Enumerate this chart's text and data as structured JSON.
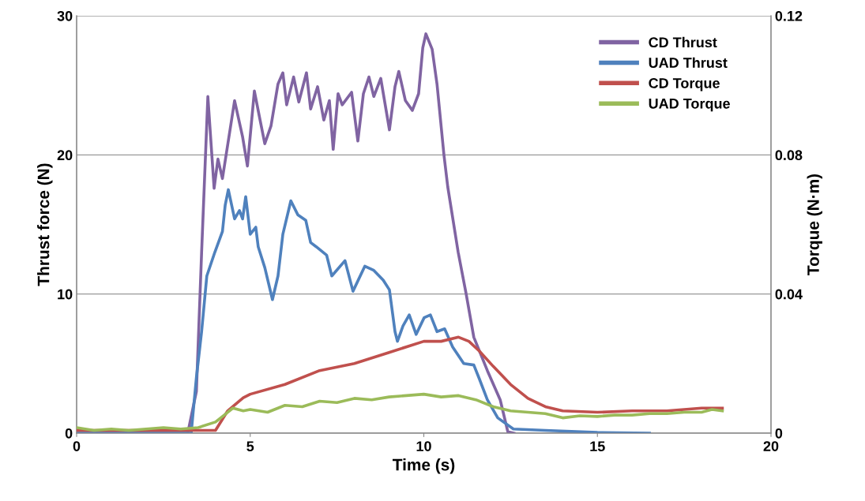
{
  "chart_data": {
    "type": "line",
    "xlabel": "Time (s)",
    "ylabel": "Thrust force (N)",
    "y2label": "Torque (N·m)",
    "xlim": [
      0,
      20
    ],
    "xticks": [
      0,
      5,
      10,
      15,
      20
    ],
    "ylim": [
      0,
      30
    ],
    "yticks": [
      0,
      10,
      20,
      30
    ],
    "y2lim": [
      0,
      0.12
    ],
    "y2ticks": [
      0,
      0.04,
      0.08,
      0.12
    ],
    "grid": "y",
    "legend": "top right",
    "marker": "none",
    "line_style": "solid",
    "series": [
      {
        "name": "CD Thrust",
        "color": "#8064a2",
        "x": [
          0,
          3.2,
          3.45,
          3.6,
          3.78,
          3.96,
          4.07,
          4.2,
          4.55,
          4.78,
          4.92,
          5.12,
          5.26,
          5.42,
          5.6,
          5.8,
          5.94,
          6.05,
          6.25,
          6.4,
          6.62,
          6.74,
          6.94,
          7.12,
          7.28,
          7.39,
          7.53,
          7.65,
          7.92,
          8.1,
          8.26,
          8.42,
          8.56,
          8.76,
          9.01,
          9.17,
          9.28,
          9.47,
          9.67,
          9.85,
          9.97,
          10.06,
          10.24,
          10.38,
          10.58,
          10.69,
          10.99,
          11.22,
          11.44,
          11.83,
          12.2,
          12.42,
          12.6
        ],
        "values": [
          0,
          0,
          3,
          13,
          24.2,
          17.6,
          19.7,
          18.3,
          23.9,
          21.3,
          19.2,
          24.6,
          22.8,
          20.8,
          22.1,
          25.1,
          25.9,
          23.6,
          25.6,
          23.8,
          25.9,
          23.3,
          24.9,
          22.5,
          23.9,
          20.4,
          24.4,
          23.6,
          24.5,
          21,
          24.4,
          25.6,
          24.2,
          25.5,
          21.8,
          24.9,
          26,
          23.9,
          23.2,
          24.4,
          27.7,
          28.7,
          27.6,
          25.1,
          20,
          17.7,
          13,
          10,
          6.9,
          4.5,
          2.4,
          0.1,
          0
        ]
      },
      {
        "name": "UAD Thrust",
        "color": "#4f81bd",
        "x": [
          0,
          3.3,
          3.45,
          3.6,
          3.75,
          3.98,
          4.2,
          4.28,
          4.37,
          4.55,
          4.69,
          4.78,
          4.87,
          5.0,
          5.16,
          5.23,
          5.42,
          5.64,
          5.8,
          5.94,
          6.17,
          6.37,
          6.6,
          6.74,
          6.9,
          7.2,
          7.35,
          7.73,
          7.96,
          8.3,
          8.56,
          8.83,
          9.01,
          9.17,
          9.24,
          9.4,
          9.58,
          9.78,
          10.01,
          10.19,
          10.38,
          10.6,
          10.83,
          11.15,
          11.44,
          11.6,
          11.83,
          12.13,
          12.58,
          13.5,
          15,
          16.5
        ],
        "values": [
          0,
          0,
          4,
          7.3,
          11.3,
          13,
          14.5,
          16.4,
          17.5,
          15.4,
          16,
          15.4,
          17,
          14.3,
          14.8,
          13.4,
          11.9,
          9.6,
          11.3,
          14.3,
          16.7,
          15.7,
          15.3,
          13.7,
          13.4,
          12.8,
          11.3,
          12.4,
          10.2,
          12,
          11.7,
          11,
          10.3,
          7.3,
          6.6,
          7.7,
          8.5,
          7.1,
          8.3,
          8.5,
          7.3,
          7.5,
          6.2,
          5,
          4.9,
          3.9,
          2.4,
          1.1,
          0.3,
          0.2,
          0.05,
          0
        ]
      },
      {
        "name": "CD Torque",
        "color": "#c0504d",
        "axis": "y2",
        "x": [
          0,
          4.0,
          4.35,
          4.8,
          5,
          6,
          7,
          8,
          9,
          10,
          10.5,
          11,
          11.3,
          11.6,
          12,
          12.5,
          13,
          13.5,
          14,
          15,
          16,
          17,
          18,
          18.6
        ],
        "values": [
          0.0008,
          0.0008,
          0.0064,
          0.0102,
          0.0112,
          0.014,
          0.018,
          0.02,
          0.0232,
          0.0264,
          0.0264,
          0.0276,
          0.0264,
          0.0236,
          0.0192,
          0.014,
          0.01,
          0.0076,
          0.0064,
          0.006,
          0.0064,
          0.0064,
          0.0072,
          0.0072
        ]
      },
      {
        "name": "UAD Torque",
        "color": "#9bbb59",
        "axis": "y2",
        "x": [
          0,
          0.5,
          1,
          1.5,
          2,
          2.5,
          3,
          3.5,
          4,
          4.3,
          4.5,
          4.8,
          5,
          5.5,
          6,
          6.5,
          7,
          7.5,
          8,
          8.5,
          9,
          9.5,
          10,
          10.5,
          11,
          11.5,
          12,
          12.5,
          13,
          13.5,
          14,
          14.5,
          15,
          15.5,
          16,
          16.5,
          17,
          17.5,
          18,
          18.3,
          18.6
        ],
        "values": [
          0.0016,
          0.0008,
          0.0012,
          0.0008,
          0.0012,
          0.0016,
          0.0012,
          0.0016,
          0.0032,
          0.0056,
          0.0072,
          0.0064,
          0.0068,
          0.006,
          0.008,
          0.0076,
          0.0092,
          0.0088,
          0.01,
          0.0096,
          0.0104,
          0.0108,
          0.0112,
          0.0104,
          0.0108,
          0.0096,
          0.0076,
          0.0064,
          0.006,
          0.0056,
          0.0044,
          0.005,
          0.0048,
          0.0052,
          0.0052,
          0.0056,
          0.0056,
          0.006,
          0.006,
          0.0068,
          0.0064
        ]
      }
    ]
  }
}
